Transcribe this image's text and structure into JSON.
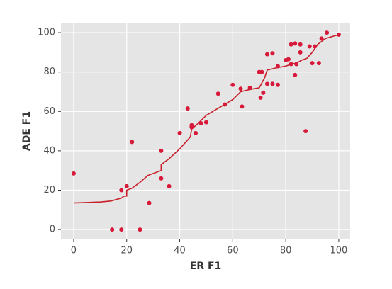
{
  "chart_data": {
    "type": "scatter",
    "x_label": "ER F1",
    "y_label": "ADE F1",
    "xlim": [
      -4.8,
      104.3
    ],
    "ylim": [
      -5,
      104.7
    ],
    "xticks": [
      0,
      20,
      40,
      60,
      80,
      100
    ],
    "yticks": [
      0,
      20,
      40,
      60,
      80,
      100
    ],
    "grid": true,
    "series": [
      {
        "type": "scatter",
        "color": "#d7193a",
        "x": [
          0,
          14.5,
          18,
          25,
          18,
          20,
          22,
          28.5,
          33,
          33,
          36,
          40,
          43,
          44.5,
          44.5,
          46,
          48,
          50,
          54.5,
          57,
          60,
          63,
          63.5,
          66.5,
          70,
          71,
          70.5,
          71.5,
          73,
          73,
          75,
          75,
          77,
          77,
          80,
          81,
          82,
          82,
          83.5,
          83.5,
          84,
          85.5,
          85.5,
          87.5,
          89,
          90,
          91,
          92.5,
          93.5,
          95.5,
          100
        ],
        "values": [
          28.5,
          0,
          0,
          0,
          20,
          22,
          44.5,
          13.5,
          40,
          26,
          22,
          49,
          61.5,
          53,
          52,
          49,
          54,
          54.5,
          69,
          63.5,
          73.5,
          71.5,
          62.5,
          72,
          80,
          80,
          67,
          69.5,
          74,
          89,
          89.5,
          74,
          73.5,
          83,
          86,
          86.5,
          94,
          84,
          94.5,
          78.5,
          84,
          94,
          90,
          50,
          93,
          84.5,
          93,
          84.5,
          97,
          100,
          99
        ]
      },
      {
        "type": "line",
        "color": "#c8202a",
        "x": [
          0,
          10,
          14,
          18,
          19,
          20,
          20,
          22,
          25,
          28,
          33,
          33,
          36,
          40,
          42,
          44,
          44.5,
          47,
          50,
          55,
          60,
          63,
          66,
          70,
          72,
          73,
          76,
          80,
          82,
          84,
          86,
          88,
          90,
          92,
          95,
          100
        ],
        "values": [
          13.5,
          14,
          14.5,
          16,
          17,
          17,
          20,
          21,
          24,
          27.5,
          30,
          33,
          36,
          41,
          44,
          47,
          51,
          54,
          58,
          62,
          66,
          70,
          71,
          72,
          77,
          81,
          82,
          83,
          84,
          84.5,
          86,
          87,
          90,
          94,
          97,
          99
        ]
      }
    ]
  }
}
